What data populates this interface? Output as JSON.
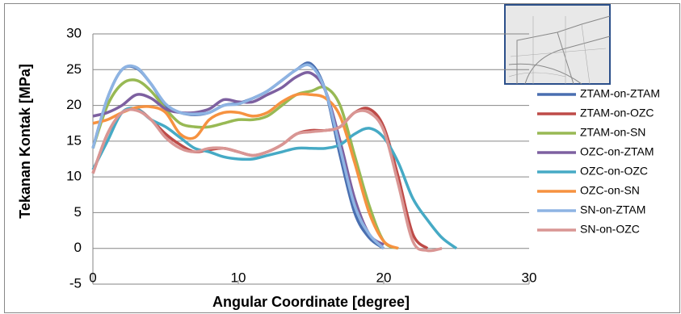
{
  "chart_data": {
    "type": "line",
    "y_label": "Tekanan Kontak [MPa]",
    "x_label": "Angular Coordinate [degree]",
    "x": [
      0,
      1,
      2,
      3,
      4,
      5,
      6,
      7,
      8,
      9,
      10,
      11,
      12,
      13,
      14,
      15,
      16,
      17,
      18,
      19,
      20,
      21,
      22,
      23,
      24,
      25
    ],
    "xlim": [
      0,
      30
    ],
    "xticks": [
      0,
      10,
      20,
      30
    ],
    "ylim": [
      -5,
      30
    ],
    "yticks": [
      -5,
      0,
      5,
      10,
      15,
      20,
      25,
      30
    ],
    "grid": true,
    "legend": "right",
    "smooth": true,
    "series": [
      {
        "name": "ZTAM-on-ZTAM",
        "color": "#4a6fb0",
        "values": [
          14,
          21,
          25,
          25.2,
          23,
          20,
          19,
          18.7,
          19,
          20,
          20.3,
          21,
          22,
          23.5,
          25,
          25.8,
          22,
          13,
          5,
          1.5,
          0,
          null,
          null,
          null,
          null,
          null
        ]
      },
      {
        "name": "ZTAM-on-OZC",
        "color": "#be4b48",
        "values": [
          10.5,
          16,
          19,
          19.5,
          18,
          16,
          14.5,
          13.5,
          13.8,
          14,
          13.5,
          13,
          13.5,
          14.5,
          16,
          16.5,
          16.5,
          17,
          19,
          19.5,
          17,
          10,
          2,
          0,
          null,
          null
        ]
      },
      {
        "name": "ZTAM-on-SN",
        "color": "#98b954",
        "values": [
          14,
          20,
          23,
          23.5,
          22,
          19.5,
          17.5,
          17,
          17,
          17.5,
          18,
          18,
          18.5,
          20,
          21.5,
          22,
          22.5,
          20,
          13,
          6,
          1,
          0,
          null,
          null,
          null,
          null
        ]
      },
      {
        "name": "OZC-on-ZTAM",
        "color": "#7d60a0",
        "values": [
          18.5,
          19,
          20,
          21.5,
          21,
          19.5,
          19,
          19,
          19.5,
          20.8,
          20.5,
          20.5,
          21.5,
          22.5,
          24,
          24.5,
          22,
          15,
          7,
          2,
          0.5,
          null,
          null,
          null,
          null,
          null
        ]
      },
      {
        "name": "OZC-on-OZC",
        "color": "#46aac5",
        "values": [
          11,
          15,
          19,
          19.5,
          18,
          17,
          15.5,
          14,
          13.5,
          12.8,
          12.5,
          12.5,
          13,
          13.5,
          14,
          14,
          14,
          14.5,
          16,
          16.8,
          15.5,
          12,
          7,
          4,
          1.5,
          0
        ]
      },
      {
        "name": "OZC-on-SN",
        "color": "#f69240",
        "values": [
          17.5,
          18,
          19,
          19.7,
          19.8,
          19,
          16,
          15.5,
          18,
          19,
          19,
          18.5,
          19,
          20.5,
          21.5,
          21.5,
          21,
          18.5,
          12,
          5,
          1,
          0,
          null,
          null,
          null,
          null
        ]
      },
      {
        "name": "SN-on-ZTAM",
        "color": "#8eb4e3",
        "values": [
          14,
          21,
          25,
          25.3,
          23,
          20.2,
          19,
          18.8,
          19,
          20,
          20.2,
          21,
          22,
          23.5,
          25,
          25.5,
          22,
          14,
          6,
          2,
          0,
          null,
          null,
          null,
          null,
          null
        ]
      },
      {
        "name": "SN-on-OZC",
        "color": "#d99694",
        "values": [
          10.5,
          16,
          19,
          19.3,
          18,
          15.5,
          14,
          13.5,
          14,
          14,
          13.5,
          13,
          13.5,
          14.5,
          16,
          16.3,
          16.5,
          17,
          19,
          19,
          16.5,
          9,
          1,
          -0.3,
          0,
          null
        ]
      }
    ]
  }
}
